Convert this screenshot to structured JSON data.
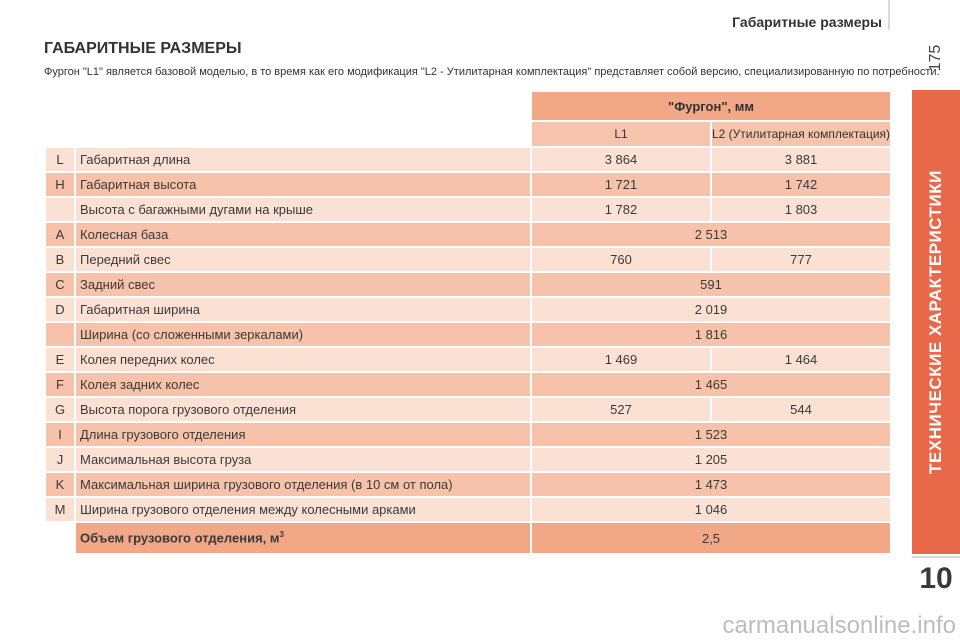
{
  "header": {
    "title": "Габаритные размеры"
  },
  "page_number": "175",
  "side_tab": {
    "label": "ТЕХНИЧЕСКИЕ ХАРАКТЕРИСТИКИ",
    "color": "#e8694a"
  },
  "chapter_number": "10",
  "section": {
    "title": "ГАБАРИТНЫЕ РАЗМЕРЫ",
    "intro": "Фургон \"L1\" является базовой моделью, в то время как его модификация \"L2 - Утилитарная комплектация\" представляет собой версию, специализированную по потребности."
  },
  "table": {
    "group_header": "\"Фургон\", мм",
    "col_l1": "L1",
    "col_l2": "L2 (Утилитарная комплектация)",
    "rows": [
      {
        "letter": "L",
        "label": "Габаритная длина",
        "l1": "3 864",
        "l2": "3 881"
      },
      {
        "letter": "H",
        "label": "Габаритная высота",
        "l1": "1 721",
        "l2": "1 742"
      },
      {
        "letter": "",
        "label": "Высота с багажными дугами на крыше",
        "l1": "1 782",
        "l2": "1 803"
      },
      {
        "letter": "A",
        "label": "Колесная база",
        "both": "2 513"
      },
      {
        "letter": "B",
        "label": "Передний свес",
        "l1": "760",
        "l2": "777"
      },
      {
        "letter": "C",
        "label": "Задний свес",
        "both": "591"
      },
      {
        "letter": "D",
        "label": "Габаритная ширина",
        "both": "2 019"
      },
      {
        "letter": "",
        "label": "Ширина (со сложенными зеркалами)",
        "both": "1 816"
      },
      {
        "letter": "E",
        "label": "Колея передних колес",
        "l1": "1 469",
        "l2": "1 464"
      },
      {
        "letter": "F",
        "label": "Колея задних колес",
        "both": "1 465"
      },
      {
        "letter": "G",
        "label": "Высота порога грузового отделения",
        "l1": "527",
        "l2": "544"
      },
      {
        "letter": "I",
        "label": "Длина грузового отделения",
        "both": "1 523"
      },
      {
        "letter": "J",
        "label": "Максимальная высота груза",
        "both": "1 205"
      },
      {
        "letter": "K",
        "label": "Максимальная ширина грузового отделения (в 10 см от пола)",
        "both": "1 473"
      },
      {
        "letter": "M",
        "label": "Ширина грузового отделения между колесными арками",
        "both": "1 046"
      }
    ],
    "total": {
      "label": "Объем грузового отделения, м",
      "unit_sup": "3",
      "value": "2,5"
    }
  },
  "watermark": "carmanualsonline.info"
}
